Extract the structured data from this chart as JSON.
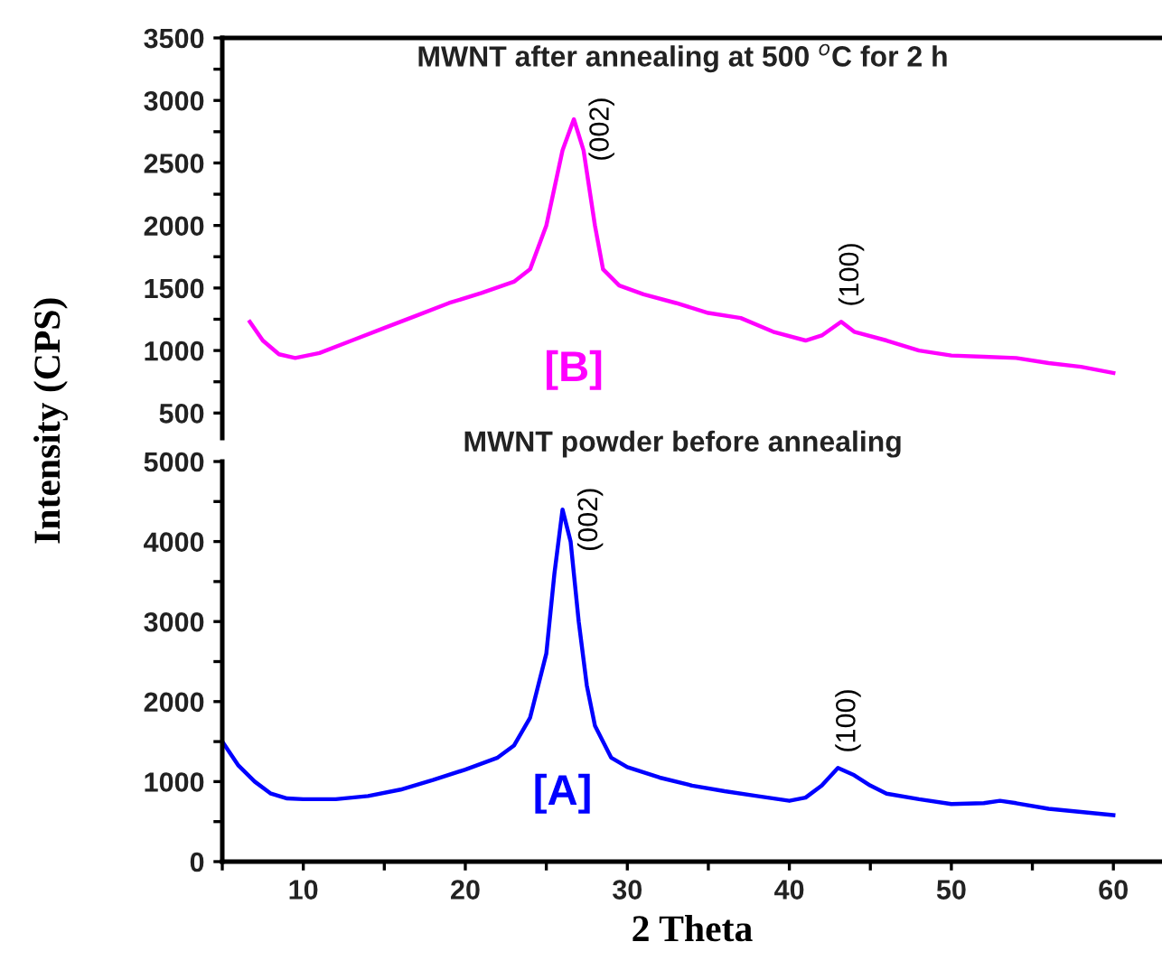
{
  "chart_data": [
    {
      "type": "line",
      "title": "MWNT after annealing at 500 $^{o}$C for 2 h",
      "ylabel": "Intensity (CPS)",
      "xlim": [
        5,
        63
      ],
      "ylim": [
        300,
        3500
      ],
      "yticks": [
        500,
        {
          "value": 750,
          "label": null
        },
        1000,
        {
          "value": 1250,
          "label": null
        },
        1500,
        {
          "value": 1750,
          "label": null
        },
        2000,
        {
          "value": 2250,
          "label": null
        },
        2500,
        {
          "value": 2750,
          "label": null
        },
        3000,
        {
          "value": 3250,
          "label": null
        },
        3500
      ],
      "tick_labels": "y",
      "series": [
        {
          "name": "[B]",
          "color": "#ff00ff",
          "x": [
            6.7,
            7.5,
            8.5,
            9.5,
            11,
            13,
            15,
            17,
            19,
            21,
            23,
            24,
            25,
            26,
            26.7,
            27.3,
            28,
            28.5,
            29.5,
            31,
            33,
            35,
            37,
            39,
            41,
            42,
            43.2,
            44,
            46,
            48,
            50,
            52,
            54,
            56,
            58,
            60
          ],
          "values": [
            1230,
            1080,
            970,
            940,
            980,
            1080,
            1180,
            1280,
            1380,
            1460,
            1550,
            1650,
            2000,
            2600,
            2850,
            2600,
            2000,
            1650,
            1520,
            1450,
            1380,
            1300,
            1260,
            1150,
            1080,
            1120,
            1230,
            1150,
            1080,
            1000,
            960,
            950,
            940,
            900,
            870,
            820
          ]
        }
      ],
      "annotations": [
        {
          "text": "(002)",
          "x": 26.7,
          "y": 2850
        },
        {
          "text": "(100)",
          "x": 43.2,
          "y": 1230
        }
      ]
    },
    {
      "type": "line",
      "title": "MWNT powder before annealing",
      "xlabel": "2 Theta",
      "xlim": [
        5,
        63
      ],
      "ylim": [
        0,
        5000
      ],
      "xticks": [
        {
          "value": 5,
          "label": null
        },
        10,
        {
          "value": 15,
          "label": null
        },
        20,
        {
          "value": 25,
          "label": null
        },
        30,
        {
          "value": 35,
          "label": null
        },
        40,
        {
          "value": 45,
          "label": null
        },
        50,
        {
          "value": 55,
          "label": null
        },
        60
      ],
      "yticks": [
        0,
        {
          "value": 500,
          "label": null
        },
        1000,
        {
          "value": 1500,
          "label": null
        },
        2000,
        {
          "value": 2500,
          "label": null
        },
        3000,
        {
          "value": 3500,
          "label": null
        },
        4000,
        {
          "value": 4500,
          "label": null
        },
        5000
      ],
      "series": [
        {
          "name": "[A]",
          "color": "#0000ff",
          "x": [
            5,
            6,
            7,
            8,
            9,
            10,
            12,
            14,
            16,
            18,
            20,
            22,
            23,
            24,
            25,
            25.5,
            26,
            26.5,
            27,
            27.5,
            28,
            29,
            30,
            32,
            34,
            36,
            38,
            40,
            41,
            42,
            43,
            44,
            45,
            46,
            48,
            50,
            52,
            53,
            54,
            56,
            58,
            60
          ],
          "values": [
            1500,
            1200,
            1000,
            850,
            790,
            780,
            780,
            820,
            900,
            1020,
            1150,
            1300,
            1450,
            1800,
            2600,
            3600,
            4400,
            4000,
            3000,
            2200,
            1700,
            1300,
            1180,
            1050,
            950,
            880,
            820,
            760,
            800,
            950,
            1170,
            1080,
            950,
            850,
            780,
            720,
            730,
            760,
            730,
            660,
            620,
            580
          ]
        }
      ],
      "annotations": [
        {
          "text": "(002)",
          "x": 26,
          "y": 4400
        },
        {
          "text": "(100)",
          "x": 43,
          "y": 1170
        }
      ]
    }
  ]
}
